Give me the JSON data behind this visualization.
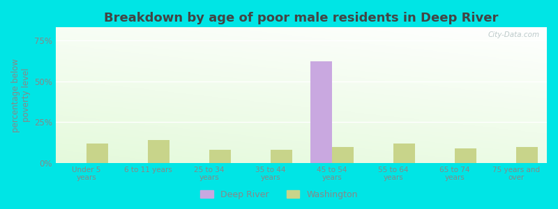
{
  "title": "Breakdown by age of poor male residents in Deep River",
  "categories": [
    "Under 5\nyears",
    "6 to 11 years",
    "25 to 34\nyears",
    "35 to 44\nyears",
    "45 to 54\nyears",
    "55 to 64\nyears",
    "65 to 74\nyears",
    "75 years and\nover"
  ],
  "deep_river_values": [
    0,
    0,
    0,
    0,
    62,
    0,
    0,
    0
  ],
  "washington_values": [
    12,
    14,
    8,
    8,
    10,
    12,
    9,
    10
  ],
  "deep_river_color": "#c9a8e0",
  "washington_color": "#c8d48a",
  "ylabel": "percentage below\npoverty level",
  "ylim": [
    0,
    83
  ],
  "yticks": [
    0,
    25,
    50,
    75
  ],
  "ytick_labels": [
    "0%",
    "25%",
    "50%",
    "75%"
  ],
  "background_color": "#e8f5e0",
  "outer_background": "#00e5e5",
  "title_fontsize": 13,
  "axis_fontsize": 8.5,
  "legend_labels": [
    "Deep River",
    "Washington"
  ],
  "bar_width": 0.35,
  "grid_color": "#ffffff",
  "watermark": "City-Data.com"
}
